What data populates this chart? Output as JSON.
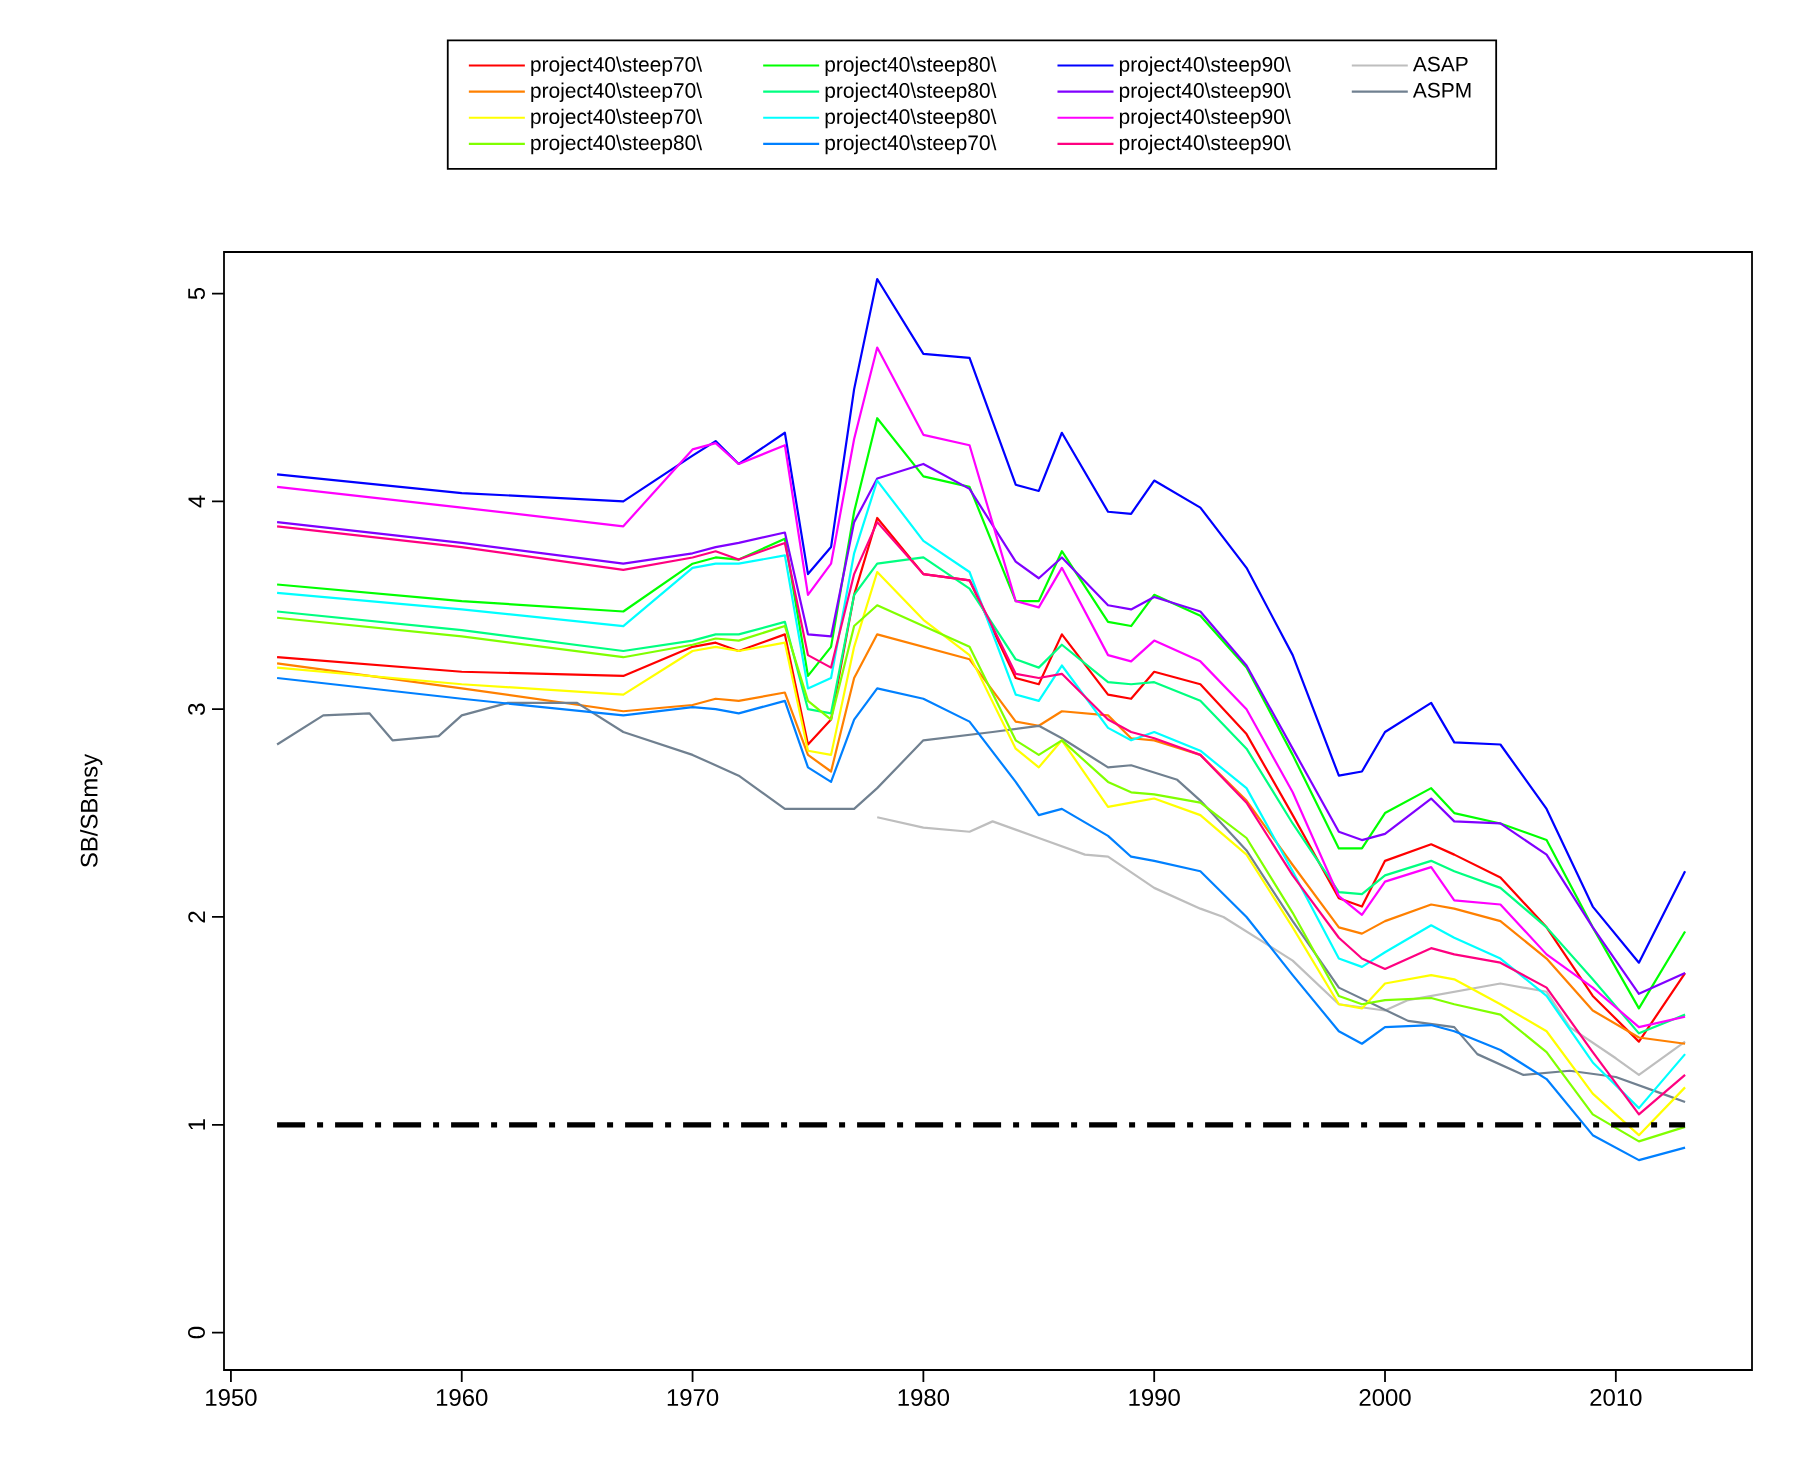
{
  "chart_data": {
    "type": "line",
    "ylabel": "SB/SBmsy",
    "xlim": [
      1949.7,
      2015.9
    ],
    "ylim": [
      -0.18,
      5.2
    ],
    "xticks": [
      1950,
      1960,
      1970,
      1980,
      1990,
      2000,
      2010
    ],
    "yticks": [
      0,
      1,
      2,
      3,
      4,
      5
    ],
    "legend": "top",
    "x": [
      1952,
      1960,
      1967,
      1970,
      1971,
      1972,
      1974,
      1975,
      1976,
      1977,
      1978,
      1980,
      1982,
      1984,
      1985,
      1986,
      1988,
      1989,
      1990,
      1992,
      1994,
      1996,
      1998,
      1999,
      2000,
      2002,
      2003,
      2005,
      2007,
      2009,
      2011,
      2013
    ],
    "series": [
      {
        "name": "project40\\steep70\\",
        "color": "#ff0000",
        "values": [
          3.25,
          3.18,
          3.16,
          3.3,
          3.32,
          3.28,
          3.36,
          2.83,
          2.95,
          3.55,
          3.92,
          3.65,
          3.62,
          3.15,
          3.12,
          3.36,
          3.07,
          3.05,
          3.18,
          3.12,
          2.88,
          2.49,
          2.09,
          2.05,
          2.27,
          2.35,
          2.3,
          2.19,
          1.95,
          1.62,
          1.4,
          1.73
        ]
      },
      {
        "name": "project40\\steep70\\",
        "color": "#ff8000",
        "values": [
          3.22,
          3.1,
          2.99,
          3.02,
          3.05,
          3.04,
          3.08,
          2.78,
          2.7,
          3.15,
          3.36,
          3.3,
          3.24,
          2.94,
          2.92,
          2.99,
          2.97,
          2.86,
          2.85,
          2.78,
          2.56,
          2.25,
          1.95,
          1.92,
          1.98,
          2.06,
          2.04,
          1.98,
          1.8,
          1.55,
          1.42,
          1.39
        ]
      },
      {
        "name": "project40\\steep70\\",
        "color": "#ffff00",
        "values": [
          3.2,
          3.12,
          3.07,
          3.28,
          3.3,
          3.28,
          3.32,
          2.8,
          2.78,
          3.3,
          3.66,
          3.43,
          3.26,
          2.81,
          2.72,
          2.85,
          2.53,
          2.55,
          2.57,
          2.49,
          2.3,
          1.95,
          1.58,
          1.56,
          1.68,
          1.72,
          1.7,
          1.58,
          1.45,
          1.15,
          0.95,
          1.18
        ]
      },
      {
        "name": "project40\\steep80\\",
        "color": "#80ff00",
        "values": [
          3.44,
          3.35,
          3.25,
          3.31,
          3.34,
          3.33,
          3.4,
          3.04,
          2.95,
          3.4,
          3.5,
          3.4,
          3.3,
          2.85,
          2.78,
          2.85,
          2.65,
          2.6,
          2.59,
          2.55,
          2.38,
          2.02,
          1.62,
          1.58,
          1.6,
          1.61,
          1.58,
          1.53,
          1.35,
          1.05,
          0.92,
          0.99
        ]
      },
      {
        "name": "project40\\steep80\\",
        "color": "#00ff00",
        "values": [
          3.6,
          3.52,
          3.47,
          3.7,
          3.73,
          3.72,
          3.82,
          3.16,
          3.3,
          3.95,
          4.4,
          4.12,
          4.07,
          3.52,
          3.52,
          3.76,
          3.42,
          3.4,
          3.55,
          3.45,
          3.2,
          2.78,
          2.33,
          2.33,
          2.5,
          2.62,
          2.5,
          2.45,
          2.37,
          1.95,
          1.56,
          1.93
        ]
      },
      {
        "name": "project40\\steep80\\",
        "color": "#00ff80",
        "values": [
          3.47,
          3.38,
          3.28,
          3.33,
          3.36,
          3.36,
          3.42,
          3.0,
          2.98,
          3.55,
          3.7,
          3.73,
          3.58,
          3.24,
          3.2,
          3.31,
          3.13,
          3.12,
          3.13,
          3.04,
          2.81,
          2.45,
          2.12,
          2.11,
          2.2,
          2.27,
          2.22,
          2.14,
          1.95,
          1.7,
          1.44,
          1.53
        ]
      },
      {
        "name": "project40\\steep80\\",
        "color": "#00ffff",
        "values": [
          3.56,
          3.48,
          3.4,
          3.68,
          3.7,
          3.7,
          3.74,
          3.1,
          3.15,
          3.75,
          4.1,
          3.81,
          3.66,
          3.07,
          3.04,
          3.21,
          2.91,
          2.85,
          2.89,
          2.8,
          2.62,
          2.22,
          1.8,
          1.76,
          1.83,
          1.96,
          1.9,
          1.8,
          1.62,
          1.3,
          1.08,
          1.34
        ]
      },
      {
        "name": "project40\\steep70\\",
        "color": "#0080ff",
        "values": [
          3.15,
          3.05,
          2.97,
          3.01,
          3.0,
          2.98,
          3.04,
          2.72,
          2.65,
          2.95,
          3.1,
          3.05,
          2.94,
          2.65,
          2.49,
          2.52,
          2.39,
          2.29,
          2.27,
          2.22,
          2.0,
          1.72,
          1.45,
          1.39,
          1.47,
          1.48,
          1.45,
          1.36,
          1.22,
          0.95,
          0.83,
          0.89
        ]
      },
      {
        "name": "project40\\steep90\\",
        "color": "#0000ff",
        "values": [
          4.13,
          4.04,
          4.0,
          4.22,
          4.29,
          4.18,
          4.33,
          3.65,
          3.78,
          4.54,
          5.07,
          4.71,
          4.69,
          4.08,
          4.05,
          4.33,
          3.95,
          3.94,
          4.1,
          3.97,
          3.68,
          3.26,
          2.68,
          2.7,
          2.89,
          3.03,
          2.84,
          2.83,
          2.52,
          2.05,
          1.78,
          2.22
        ]
      },
      {
        "name": "project40\\steep90\\",
        "color": "#8000ff",
        "values": [
          3.9,
          3.8,
          3.7,
          3.75,
          3.78,
          3.8,
          3.85,
          3.36,
          3.35,
          3.9,
          4.11,
          4.18,
          4.06,
          3.71,
          3.63,
          3.73,
          3.5,
          3.48,
          3.54,
          3.47,
          3.21,
          2.81,
          2.41,
          2.37,
          2.4,
          2.57,
          2.46,
          2.45,
          2.3,
          1.95,
          1.63,
          1.73
        ]
      },
      {
        "name": "project40\\steep90\\",
        "color": "#ff00ff",
        "values": [
          4.07,
          3.97,
          3.88,
          4.25,
          4.28,
          4.18,
          4.27,
          3.55,
          3.7,
          4.3,
          4.74,
          4.32,
          4.27,
          3.52,
          3.49,
          3.68,
          3.26,
          3.23,
          3.33,
          3.23,
          3.0,
          2.6,
          2.1,
          2.01,
          2.17,
          2.24,
          2.08,
          2.06,
          1.82,
          1.66,
          1.47,
          1.52
        ]
      },
      {
        "name": "project40\\steep90\\",
        "color": "#ff0080",
        "values": [
          3.88,
          3.78,
          3.67,
          3.73,
          3.76,
          3.72,
          3.8,
          3.26,
          3.2,
          3.65,
          3.9,
          3.65,
          3.62,
          3.17,
          3.15,
          3.17,
          2.95,
          2.89,
          2.86,
          2.78,
          2.55,
          2.2,
          1.9,
          1.8,
          1.75,
          1.85,
          1.82,
          1.78,
          1.66,
          1.35,
          1.05,
          1.24
        ]
      },
      {
        "name": "ASAP",
        "color": "#bebebe",
        "x": [
          1978,
          1980,
          1982,
          1983,
          1985,
          1987,
          1988,
          1990,
          1992,
          1993,
          1996,
          1998,
          2000,
          2001,
          2003,
          2005,
          2007,
          2008,
          2010,
          2011,
          2013
        ],
        "values": [
          2.48,
          2.43,
          2.41,
          2.46,
          2.38,
          2.3,
          2.29,
          2.14,
          2.04,
          2.0,
          1.79,
          1.58,
          1.55,
          1.6,
          1.64,
          1.68,
          1.64,
          1.47,
          1.32,
          1.24,
          1.4
        ]
      },
      {
        "name": "ASPM",
        "color": "#708090",
        "x": [
          1952,
          1954,
          1956,
          1957,
          1959,
          1960,
          1962,
          1965,
          1967,
          1970,
          1972,
          1974,
          1977,
          1978,
          1980,
          1983,
          1985,
          1986,
          1988,
          1989,
          1991,
          1992,
          1994,
          1996,
          1998,
          2001,
          2003,
          2004,
          2006,
          2008,
          2010,
          2012,
          2013
        ],
        "values": [
          2.83,
          2.97,
          2.98,
          2.85,
          2.87,
          2.97,
          3.03,
          3.03,
          2.89,
          2.78,
          2.68,
          2.52,
          2.52,
          2.62,
          2.85,
          2.89,
          2.92,
          2.86,
          2.72,
          2.73,
          2.66,
          2.56,
          2.32,
          1.98,
          1.66,
          1.5,
          1.47,
          1.34,
          1.24,
          1.26,
          1.23,
          1.15,
          1.11
        ]
      },
      {
        "color": "#000000",
        "line_style": "dashed",
        "x": [
          1952,
          2013
        ],
        "values": [
          1,
          1
        ]
      }
    ]
  }
}
